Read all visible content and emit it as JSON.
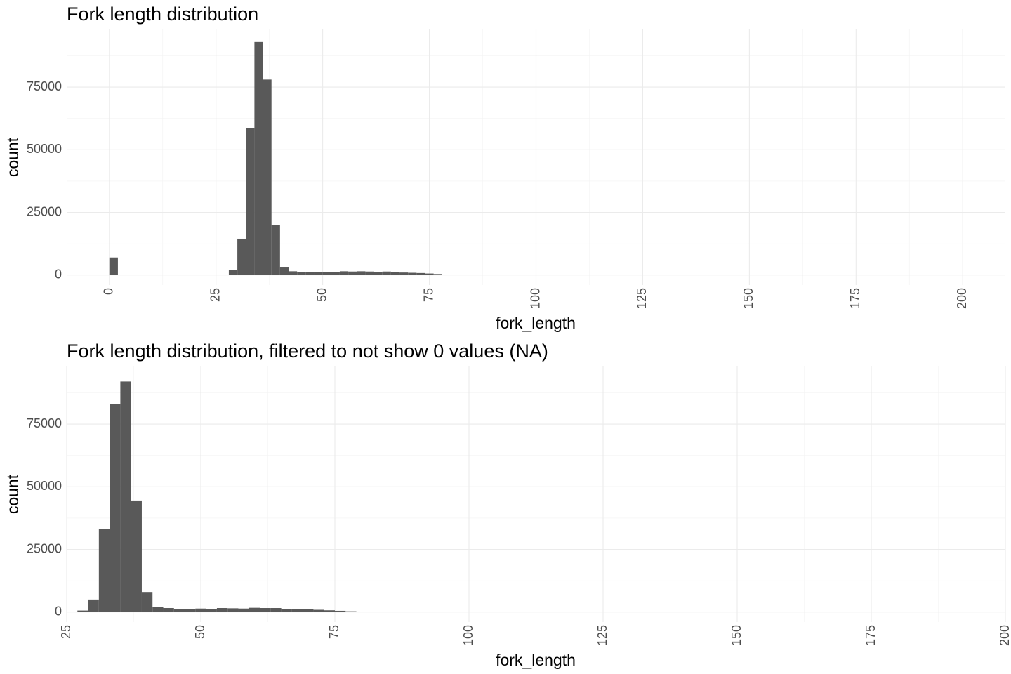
{
  "chart_data": [
    {
      "type": "bar",
      "title": "Fork length distribution",
      "xlabel": "fork_length",
      "ylabel": "count",
      "xlim": [
        -10,
        210
      ],
      "ylim": [
        -4000,
        98000
      ],
      "x_ticks": [
        0,
        25,
        50,
        75,
        100,
        125,
        150,
        175,
        200
      ],
      "y_ticks": [
        0,
        25000,
        50000,
        75000
      ],
      "bin_width": 2,
      "grid": true,
      "color": "#595959",
      "x": [
        1,
        29,
        31,
        33,
        35,
        37,
        39,
        41,
        43,
        45,
        47,
        49,
        51,
        53,
        55,
        57,
        59,
        61,
        63,
        65,
        67,
        69,
        71,
        73,
        75,
        77,
        79
      ],
      "values": [
        7000,
        2000,
        14500,
        58500,
        93000,
        78000,
        20000,
        3000,
        1500,
        1300,
        1100,
        1300,
        1200,
        1300,
        1500,
        1400,
        1500,
        1400,
        1300,
        1400,
        1100,
        1000,
        900,
        800,
        600,
        400,
        200
      ]
    },
    {
      "type": "bar",
      "title": "Fork length distribution, filtered to not show 0 values (NA)",
      "xlabel": "fork_length",
      "ylabel": "count",
      "xlim": [
        25,
        200
      ],
      "ylim": [
        -4000,
        98000
      ],
      "x_ticks": [
        25,
        50,
        75,
        100,
        125,
        150,
        175,
        200
      ],
      "y_ticks": [
        0,
        25000,
        50000,
        75000
      ],
      "bin_width": 2,
      "grid": true,
      "color": "#595959",
      "x": [
        28,
        30,
        32,
        34,
        36,
        38,
        40,
        42,
        44,
        46,
        48,
        50,
        52,
        54,
        56,
        58,
        60,
        62,
        64,
        66,
        68,
        70,
        72,
        74,
        76,
        78,
        80
      ],
      "values": [
        600,
        5000,
        33000,
        83000,
        92000,
        44500,
        8000,
        2000,
        1600,
        1300,
        1300,
        1400,
        1300,
        1600,
        1500,
        1400,
        1700,
        1600,
        1600,
        1200,
        1100,
        1100,
        900,
        700,
        500,
        300,
        200
      ]
    }
  ]
}
